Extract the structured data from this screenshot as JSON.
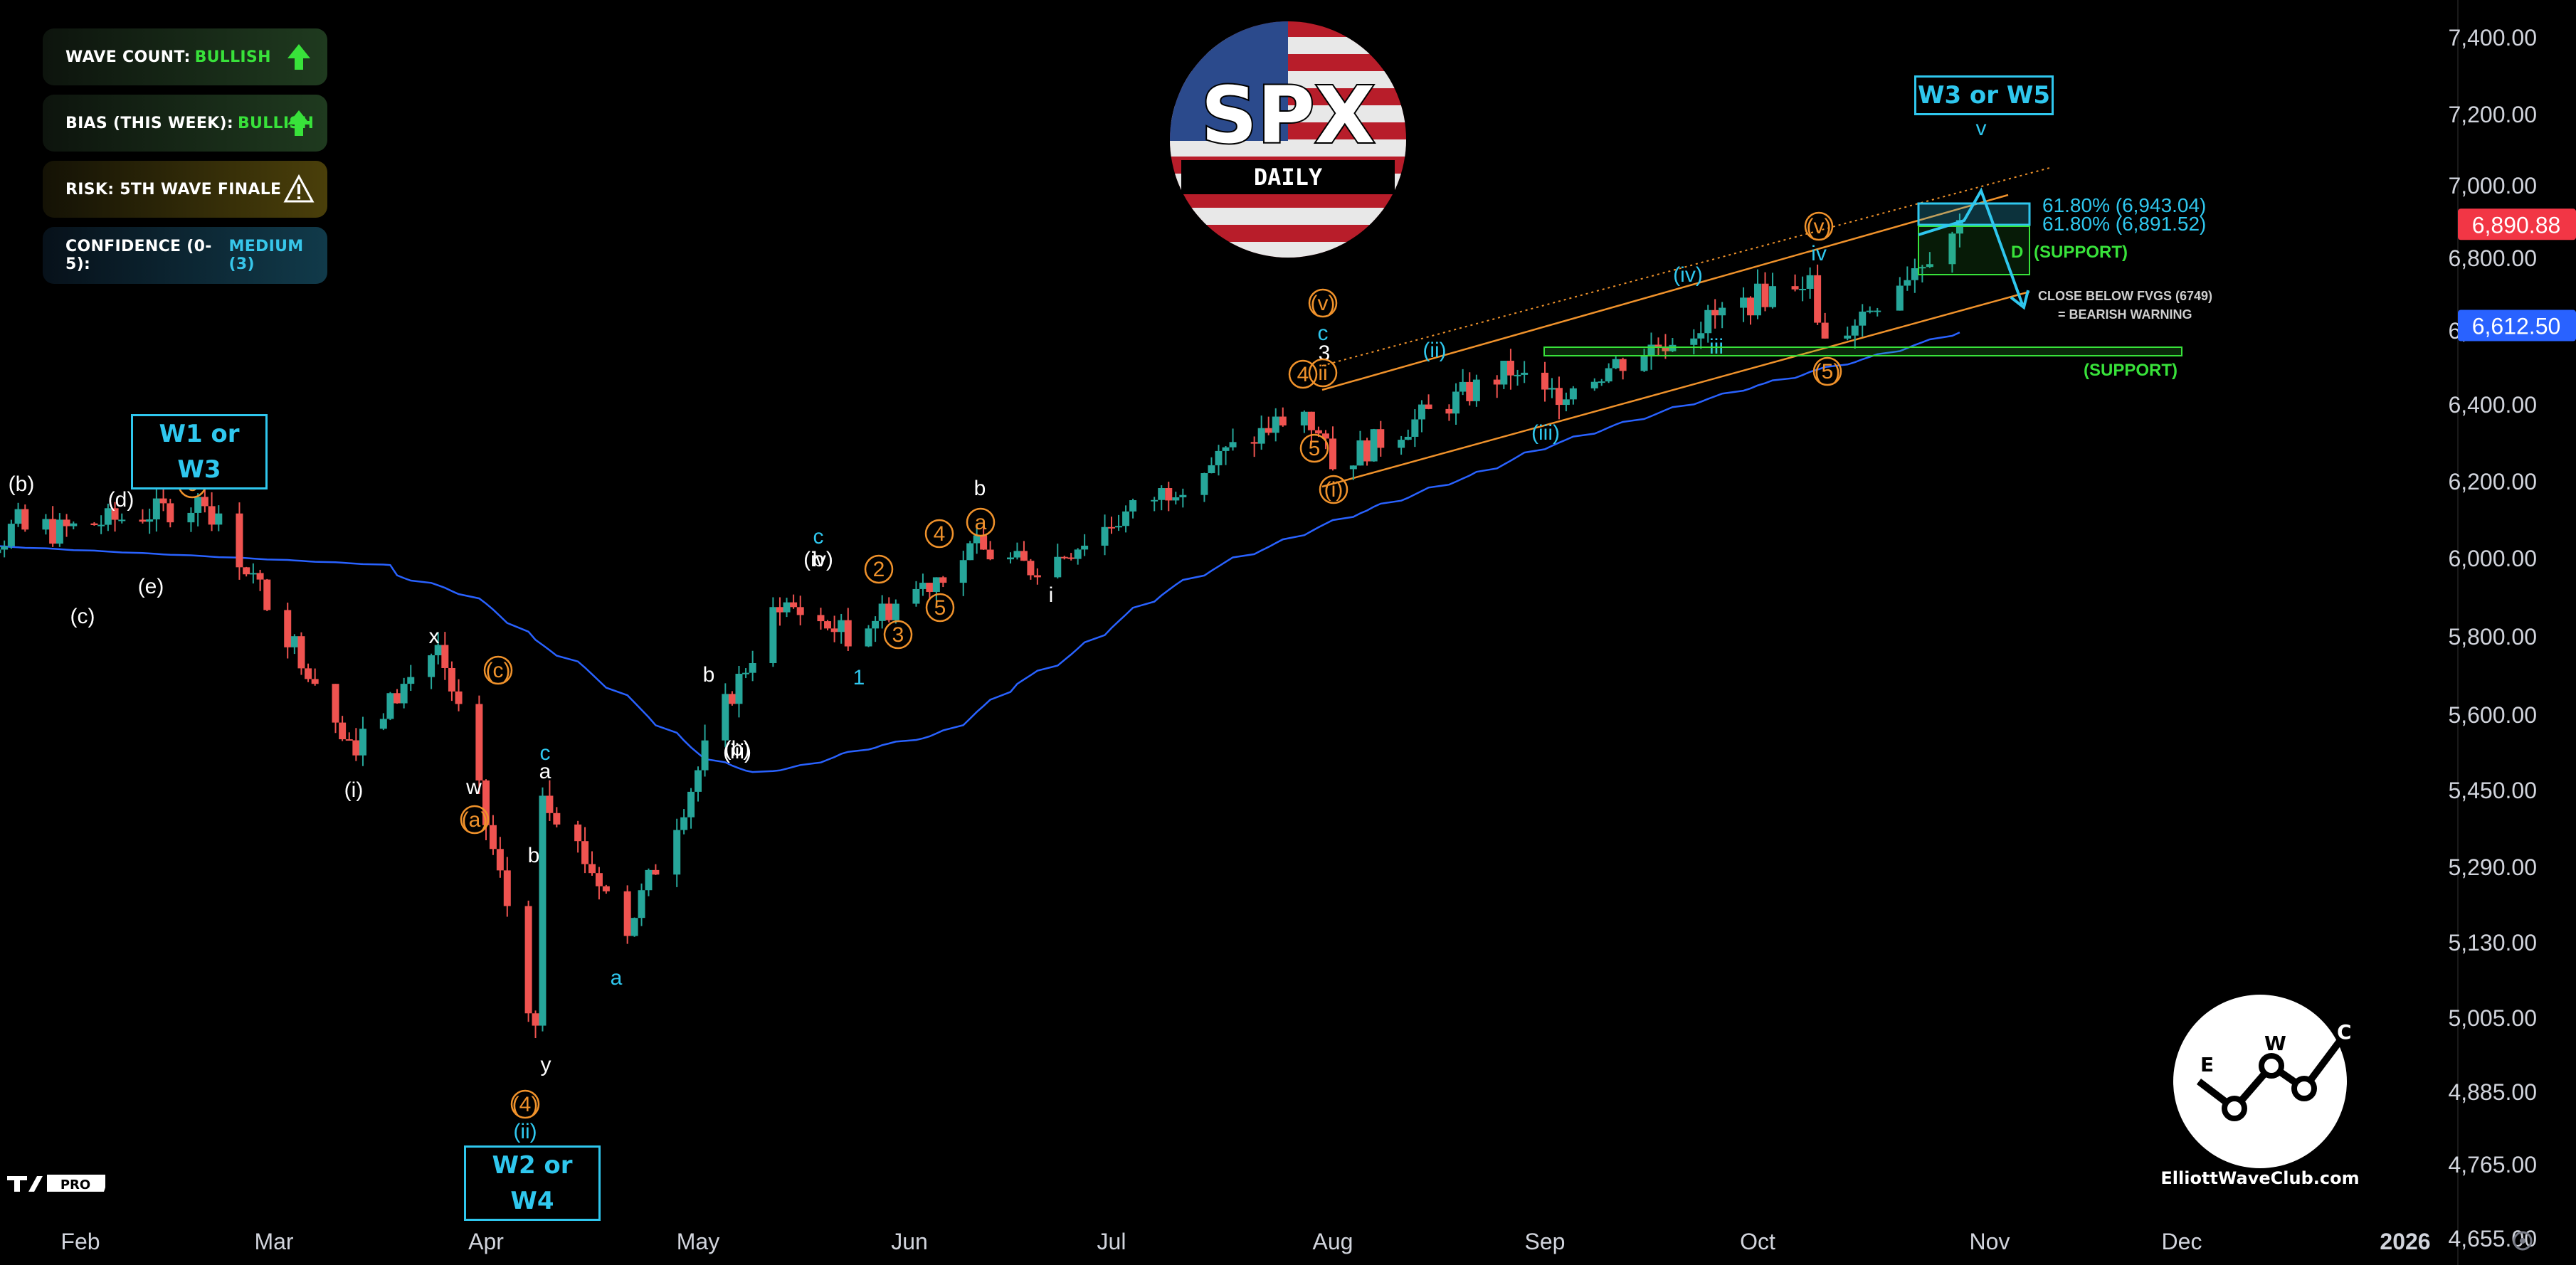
{
  "badges": [
    {
      "key": "WAVE COUNT:",
      "value": "BULLISH",
      "icon": "arrow-up-icon",
      "color": "#38e23a"
    },
    {
      "key": "BIAS (THIS WEEK):",
      "value": "BULLISH",
      "icon": "arrow-up-icon",
      "color": "#38e23a"
    },
    {
      "key": "RISK: 5TH WAVE FINALE",
      "value": "",
      "icon": "warning-icon",
      "color": "#f5d015"
    },
    {
      "key": "CONFIDENCE (0-5):",
      "value": "MEDIUM (3)",
      "icon": "",
      "color": "#37c6ea"
    }
  ],
  "logo": {
    "title": "SPX",
    "subtitle": "DAILY"
  },
  "brand": "ElliottWaveClub.com",
  "brand_letters": [
    "E",
    "W",
    "C"
  ],
  "tv_badge": "PRO",
  "degree_boxes": {
    "top": "W3 or W5",
    "left": "W1 or W3",
    "bottom": "W2 or W4"
  },
  "price_tags": [
    {
      "label": "6,890.88",
      "value": 6890.88,
      "color": "#f23645"
    },
    {
      "label": "6,612.50",
      "value": 6612.5,
      "color": "#2962ff"
    }
  ],
  "fib_labels": [
    "61.80% (6,943.04)",
    "61.80% (6,891.52)"
  ],
  "support_labels": [
    "D",
    "(SUPPORT)",
    "(SUPPORT)"
  ],
  "warning": [
    "CLOSE BELOW FVGS (6749)",
    "= BEARISH WARNING"
  ],
  "colors": {
    "up": "#26a69a",
    "down": "#ef5350",
    "ma": "#2962ff",
    "channel": "#f0922b",
    "cyan": "#2fc7ee",
    "orange": "#f0922b",
    "green": "#38e23a"
  },
  "chart_data": {
    "type": "candlestick",
    "y_axis_ticks": [
      "7,400.00",
      "7,200.00",
      "7,000.00",
      "6,800.00",
      "6,600.00",
      "6,400.00",
      "6,200.00",
      "6,000.00",
      "5,800.00",
      "5,600.00",
      "5,450.00",
      "5,290.00",
      "5,130.00",
      "5,005.00",
      "4,885.00",
      "4,765.00",
      "4,655.00"
    ],
    "x_axis_ticks": [
      "Feb",
      "Mar",
      "Apr",
      "May",
      "Jun",
      "Jul",
      "Aug",
      "Sep",
      "Oct",
      "Nov",
      "Dec",
      "2026"
    ],
    "ylim": [
      4655,
      7400
    ],
    "log_scale": true,
    "anchors": [
      {
        "date": "2025-01-28",
        "close": 6067
      },
      {
        "date": "2025-02-19",
        "close": 6144
      },
      {
        "date": "2025-03-13",
        "close": 5521
      },
      {
        "date": "2025-03-25",
        "close": 5777
      },
      {
        "date": "2025-04-08",
        "close": 4982
      },
      {
        "date": "2025-04-09",
        "close": 5457
      },
      {
        "date": "2025-04-21",
        "close": 5158
      },
      {
        "date": "2025-05-13",
        "close": 5886
      },
      {
        "date": "2025-05-23",
        "close": 5802
      },
      {
        "date": "2025-06-11",
        "close": 6022
      },
      {
        "date": "2025-06-20",
        "close": 5967
      },
      {
        "date": "2025-07-28",
        "close": 6389
      },
      {
        "date": "2025-08-01",
        "close": 6238
      },
      {
        "date": "2025-08-28",
        "close": 6501
      },
      {
        "date": "2025-09-01",
        "close": 6415
      },
      {
        "date": "2025-10-08",
        "close": 6753
      },
      {
        "date": "2025-10-10",
        "close": 6552
      },
      {
        "date": "2025-10-28",
        "close": 6891
      }
    ],
    "moving_average": "blue line",
    "wave_labels": [
      "(b)",
      "(d)",
      "(c)",
      "(e)",
      "(3)",
      "c",
      "b",
      "(b)",
      "x",
      "(c)",
      "w",
      "(a)",
      "(i)",
      "c",
      "a",
      "b",
      "y",
      "(4)",
      "(ii)",
      "a",
      "b",
      "(iii)",
      "c",
      "(iv)",
      "1",
      "2",
      "3",
      "4",
      "5",
      "a",
      "b",
      "i",
      "(v)",
      "c",
      "3",
      "4",
      "5",
      "ii",
      "(i)",
      "(ii)",
      "(iii)",
      "(iv)",
      "iii",
      "(v)",
      "iv",
      "(5)",
      "v"
    ]
  }
}
